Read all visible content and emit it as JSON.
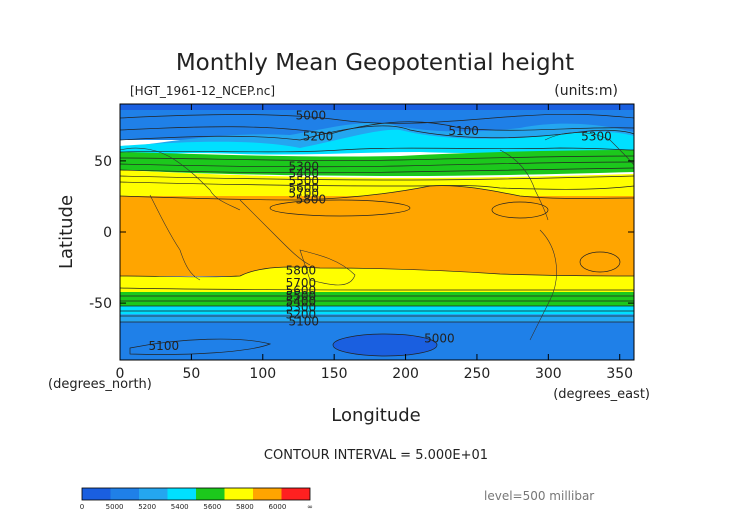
{
  "chart_data": {
    "type": "heatmap",
    "title": "Monthly Mean Geopotential height",
    "source_file": "[HGT_1961-12_NCEP.nc]",
    "units_label": "(units:m)",
    "xlabel": "Longitude",
    "ylabel": "Latitude",
    "x_unit_label": "(degrees_east)",
    "y_unit_label": "(degrees_north)",
    "xlim": [
      0,
      360
    ],
    "ylim": [
      -90,
      90
    ],
    "x_ticks": [
      0,
      50,
      100,
      150,
      200,
      250,
      300,
      350
    ],
    "y_ticks": [
      50,
      0,
      -50
    ],
    "contour_interval_text": "CONTOUR INTERVAL = 5.000E+01",
    "level_text": "level=500 millibar",
    "colorbar": {
      "labels": [
        "0",
        "5000",
        "5200",
        "5400",
        "5600",
        "5800",
        "6000",
        "∞"
      ],
      "colors": [
        "#1a5fe0",
        "#1f80e8",
        "#24a6f0",
        "#00e0ff",
        "#1cc81c",
        "#ffff00",
        "#ffa500",
        "#ff2020"
      ]
    },
    "contour_labels": [
      {
        "text": "5000",
        "lon": 123,
        "lat": 82
      },
      {
        "text": "5100",
        "lon": 230,
        "lat": 71
      },
      {
        "text": "5200",
        "lon": 128,
        "lat": 67
      },
      {
        "text": "5300",
        "lon": 323,
        "lat": 67
      },
      {
        "text": "5300",
        "lon": 118,
        "lat": 46
      },
      {
        "text": "5400",
        "lon": 118,
        "lat": 41
      },
      {
        "text": "5500",
        "lon": 118,
        "lat": 36
      },
      {
        "text": "5600",
        "lon": 118,
        "lat": 31
      },
      {
        "text": "5700",
        "lon": 118,
        "lat": 27
      },
      {
        "text": "5800",
        "lon": 123,
        "lat": 23
      },
      {
        "text": "5800",
        "lon": 116,
        "lat": -27
      },
      {
        "text": "5700",
        "lon": 116,
        "lat": -36
      },
      {
        "text": "5600",
        "lon": 116,
        "lat": -41
      },
      {
        "text": "5500",
        "lon": 116,
        "lat": -45
      },
      {
        "text": "5400",
        "lon": 116,
        "lat": -49
      },
      {
        "text": "5300",
        "lon": 116,
        "lat": -53
      },
      {
        "text": "5200",
        "lon": 116,
        "lat": -58
      },
      {
        "text": "5100",
        "lon": 118,
        "lat": -63
      },
      {
        "text": "5100",
        "lon": 20,
        "lat": -80
      },
      {
        "text": "5000",
        "lon": 213,
        "lat": -75
      }
    ]
  }
}
